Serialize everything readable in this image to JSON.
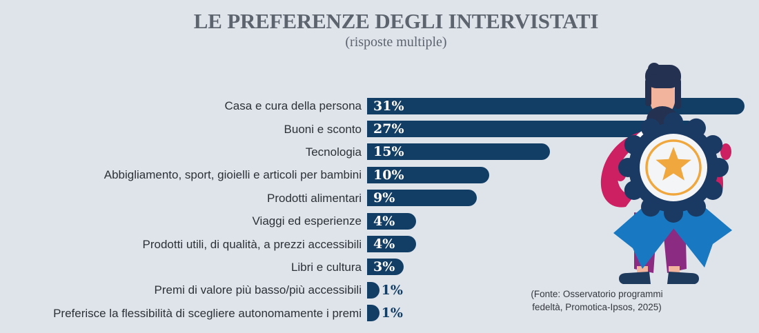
{
  "title": "LE PREFERENZE DEGLI INTERVISTATI",
  "subtitle": "(risposte multiple)",
  "source_note": {
    "line1": "(Fonte: Osservatorio programmi",
    "line2": "fedeltà, Promotica-Ipsos, 2025)"
  },
  "chart_data": {
    "type": "bar",
    "orientation": "horizontal",
    "title": "LE PREFERENZE DEGLI INTERVISTATI",
    "subtitle": "(risposte multiple)",
    "unit": "%",
    "xlim": [
      0,
      31
    ],
    "grid": false,
    "legend": "none",
    "categories": [
      "Casa e cura della persona",
      "Buoni e sconto",
      "Tecnologia",
      "Abbigliamento, sport, gioielli e articoli per bambini",
      "Prodotti alimentari",
      "Viaggi ed esperienze",
      "Prodotti utili, di qualità, a prezzi accessibili",
      "Libri e cultura",
      "Premi di valore più basso/più accessibili",
      "Preferisce la flessibilità di scegliere autonomamente i premi"
    ],
    "values": [
      31,
      27,
      15,
      10,
      9,
      4,
      4,
      3,
      1,
      1
    ],
    "bar_color": "#123d64",
    "background_color": "#dfe4eb",
    "label_color": "#2c3037",
    "value_label_inside_color": "#ffffff",
    "value_label_outside_color": "#123d64"
  },
  "illustration": {
    "name": "man-holding-award-badge",
    "colors": {
      "hair": "#243150",
      "skin": "#f2b49d",
      "shirt": "#ffffff",
      "sleeves": "#cc2063",
      "badge": "#1b3a63",
      "badge_inner": "#f4f5f7",
      "ring": "#f0a73e",
      "star": "#f0a73e",
      "ribbon": "#1878c2",
      "pants": "#8b2c82",
      "shoes": "#1e3a5c"
    }
  }
}
